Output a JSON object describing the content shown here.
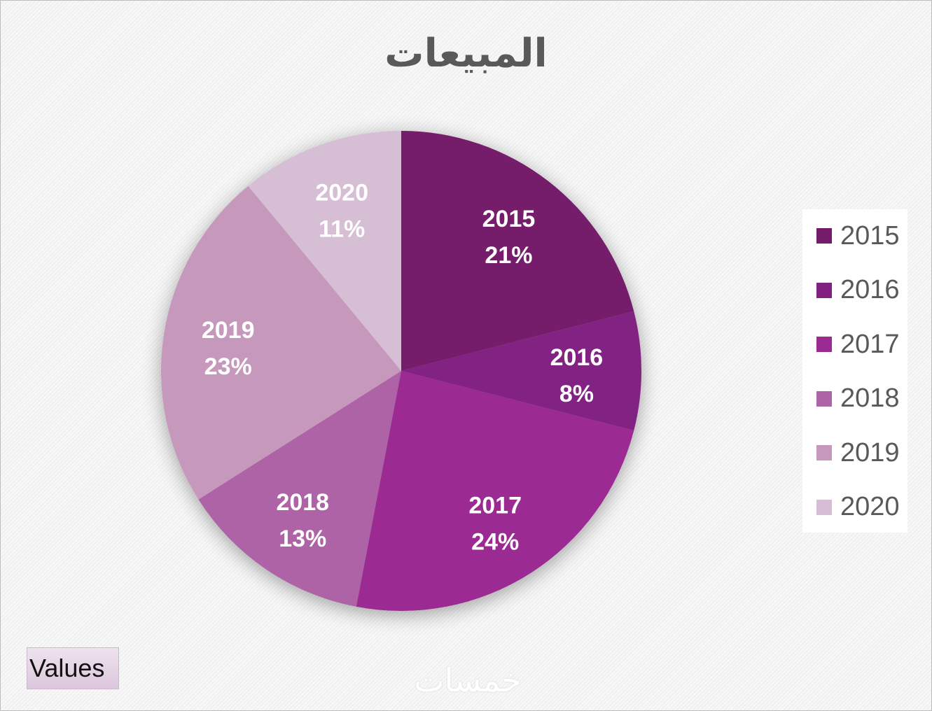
{
  "chart_data": {
    "type": "pie",
    "title": "المبيعات",
    "categories": [
      "2015",
      "2016",
      "2017",
      "2018",
      "2019",
      "2020"
    ],
    "values": [
      21,
      8,
      24,
      13,
      23,
      11
    ],
    "value_labels": [
      "21%",
      "8%",
      "24%",
      "13%",
      "23%",
      "11%"
    ],
    "colors": [
      "#751b6b",
      "#822082",
      "#9b2a92",
      "#ad63a6",
      "#c598bc",
      "#d6bed4"
    ],
    "legend_position": "right",
    "start_angle": "top, clockwise"
  },
  "field_button": {
    "label": "Values"
  },
  "watermark": {
    "text": "خمسات"
  }
}
